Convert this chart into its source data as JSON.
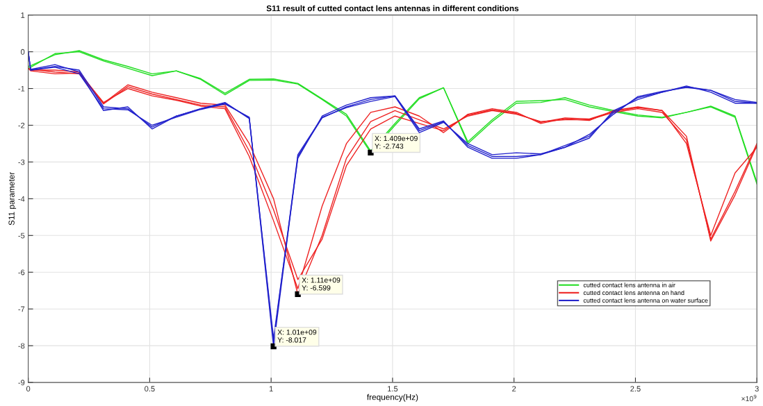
{
  "chart_data": {
    "type": "line",
    "title": "S11 result of cutted contact lens antennas in different conditions",
    "xlabel": "frequency(Hz)",
    "ylabel": "S11 parameter",
    "x": [
      0,
      0.01,
      0.11,
      0.21,
      0.31,
      0.41,
      0.51,
      0.61,
      0.71,
      0.81,
      0.91,
      1.01,
      1.11,
      1.21,
      1.31,
      1.41,
      1.51,
      1.61,
      1.71,
      1.81,
      1.91,
      2.01,
      2.11,
      2.21,
      2.31,
      2.41,
      2.51,
      2.61,
      2.71,
      2.81,
      2.91,
      3.0
    ],
    "series": [
      {
        "name": "cutted contact lens antenna in air",
        "color": "#22dd22",
        "values": [
          -0.45,
          -0.42,
          -0.05,
          0.0,
          -0.25,
          -0.45,
          -0.65,
          -0.52,
          -0.75,
          -1.17,
          -0.78,
          -0.77,
          -0.88,
          -1.3,
          -1.75,
          -2.743,
          -2.0,
          -1.28,
          -0.98,
          -2.5,
          -1.9,
          -1.4,
          -1.38,
          -1.25,
          -1.45,
          -1.6,
          -1.72,
          -1.78,
          -1.65,
          -1.5,
          -1.78,
          -3.6
        ]
      },
      {
        "color": "#22dd22",
        "values": [
          -0.4,
          -0.38,
          -0.08,
          0.03,
          -0.22,
          -0.4,
          -0.6,
          -0.52,
          -0.73,
          -1.13,
          -0.75,
          -0.74,
          -0.86,
          -1.28,
          -1.7,
          -2.7,
          -1.95,
          -1.25,
          -0.98,
          -2.45,
          -1.85,
          -1.35,
          -1.33,
          -1.3,
          -1.5,
          -1.63,
          -1.75,
          -1.8,
          -1.65,
          -1.48,
          -1.75,
          -3.55
        ]
      },
      {
        "name": "cutted contact lens antenna on hand",
        "color": "#ee2222",
        "values": [
          -0.45,
          -0.5,
          -0.5,
          -0.55,
          -1.4,
          -0.9,
          -1.1,
          -1.25,
          -1.4,
          -1.45,
          -2.5,
          -4.0,
          -6.599,
          -5.0,
          -2.9,
          -1.9,
          -1.6,
          -1.85,
          -2.1,
          -1.75,
          -1.6,
          -1.7,
          -1.9,
          -1.85,
          -1.85,
          -1.65,
          -1.55,
          -1.65,
          -2.4,
          -5.1,
          -3.8,
          -2.5
        ]
      },
      {
        "color": "#ee2222",
        "values": [
          -0.45,
          -0.48,
          -0.55,
          -0.6,
          -1.42,
          -0.95,
          -1.15,
          -1.3,
          -1.45,
          -1.5,
          -2.7,
          -4.3,
          -6.2,
          -5.1,
          -3.1,
          -2.1,
          -1.75,
          -1.95,
          -2.15,
          -1.72,
          -1.58,
          -1.68,
          -1.92,
          -1.8,
          -1.83,
          -1.62,
          -1.52,
          -1.6,
          -2.5,
          -5.0,
          -3.3,
          -2.6
        ]
      },
      {
        "color": "#ee2222",
        "values": [
          -0.45,
          -0.52,
          -0.6,
          -0.58,
          -1.38,
          -1.0,
          -1.2,
          -1.32,
          -1.48,
          -1.55,
          -2.85,
          -4.6,
          -6.45,
          -4.2,
          -2.5,
          -1.65,
          -1.5,
          -1.75,
          -2.2,
          -1.7,
          -1.55,
          -1.65,
          -1.95,
          -1.82,
          -1.87,
          -1.6,
          -1.5,
          -1.6,
          -2.3,
          -5.15,
          -3.9,
          -2.55
        ]
      },
      {
        "name": "cutted contact lens antenna on water surface",
        "color": "#2222cc",
        "values": [
          0.0,
          -0.5,
          -0.4,
          -0.5,
          -1.5,
          -1.55,
          -2.05,
          -1.75,
          -1.55,
          -1.4,
          -1.8,
          -8.017,
          -2.85,
          -1.8,
          -1.5,
          -1.3,
          -1.2,
          -2.15,
          -1.9,
          -2.55,
          -2.85,
          -2.85,
          -2.8,
          -2.55,
          -2.3,
          -1.65,
          -1.25,
          -1.1,
          -0.95,
          -1.05,
          -1.35,
          -1.4
        ]
      },
      {
        "color": "#2222cc",
        "values": [
          0.0,
          -0.48,
          -0.35,
          -0.55,
          -1.6,
          -1.5,
          -2.1,
          -1.75,
          -1.55,
          -1.38,
          -1.82,
          -7.8,
          -2.9,
          -1.75,
          -1.45,
          -1.25,
          -1.2,
          -2.1,
          -1.88,
          -2.6,
          -2.9,
          -2.9,
          -2.8,
          -2.6,
          -2.35,
          -1.6,
          -1.3,
          -1.1,
          -0.93,
          -1.1,
          -1.4,
          -1.4
        ]
      },
      {
        "color": "#2222cc",
        "values": [
          0.0,
          -0.5,
          -0.42,
          -0.6,
          -1.55,
          -1.58,
          -2.0,
          -1.78,
          -1.57,
          -1.42,
          -1.78,
          -7.9,
          -2.8,
          -1.78,
          -1.52,
          -1.35,
          -1.22,
          -2.2,
          -1.92,
          -2.5,
          -2.8,
          -2.75,
          -2.78,
          -2.6,
          -2.25,
          -1.7,
          -1.22,
          -1.08,
          -0.97,
          -1.05,
          -1.3,
          -1.38
        ]
      }
    ],
    "xlim": [
      0,
      3
    ],
    "xticks": [
      0,
      0.5,
      1,
      1.5,
      2,
      2.5,
      3
    ],
    "ylim": [
      -9,
      1
    ],
    "yticks": [
      -9,
      -8,
      -7,
      -6,
      -5,
      -4,
      -3,
      -2,
      -1,
      0,
      1
    ],
    "grid": true,
    "legend": "bottom right",
    "marker": "none",
    "line_style": "solid",
    "annotations": [
      {
        "text": "X: 1.409e+09\nY: -2.743",
        "x": 1.41,
        "y": -2.743
      },
      {
        "text": "X: 1.11e+09\nY: -6.599",
        "x": 1.11,
        "y": -6.599
      },
      {
        "text": "X: 1.01e+09\nY: -8.017",
        "x": 1.01,
        "y": -8.017
      },
      "×10$^{9}$"
    ]
  }
}
